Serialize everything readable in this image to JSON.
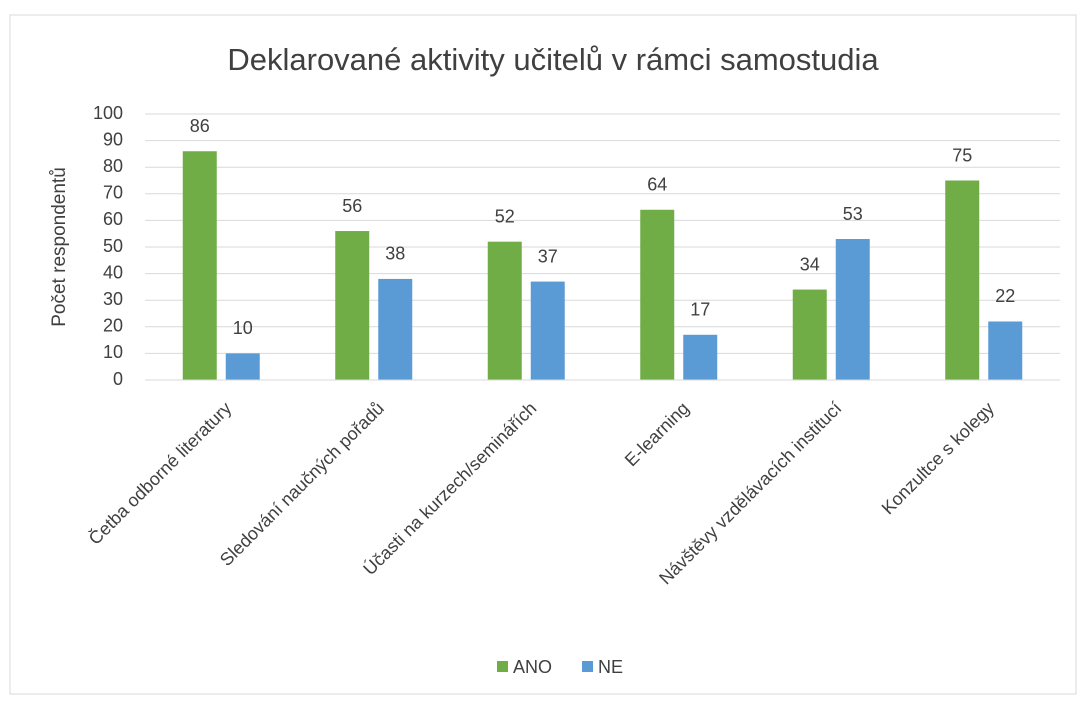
{
  "chart_data": {
    "type": "bar",
    "title": "Deklarované aktivity učitelů v rámci samostudia",
    "y_label": "Počet respondentů",
    "categories": [
      "Četba odborné literatury",
      "Sledování naučných pořadů",
      "Účasti na kurzech/seminářích",
      "E-learning",
      "Návštěvy vzdělávacích institucí",
      "Konzultce s kolegy"
    ],
    "series": [
      {
        "name": "ANO",
        "color": "#70ad47",
        "values": [
          86,
          56,
          52,
          64,
          34,
          75
        ]
      },
      {
        "name": "NE",
        "color": "#5b9bd5",
        "values": [
          10,
          38,
          37,
          17,
          53,
          22
        ]
      }
    ],
    "ylim": [
      0,
      100
    ],
    "yticks": [
      0,
      10,
      20,
      30,
      40,
      50,
      60,
      70,
      80,
      90,
      100
    ],
    "grid": true,
    "legend": "bottom"
  }
}
